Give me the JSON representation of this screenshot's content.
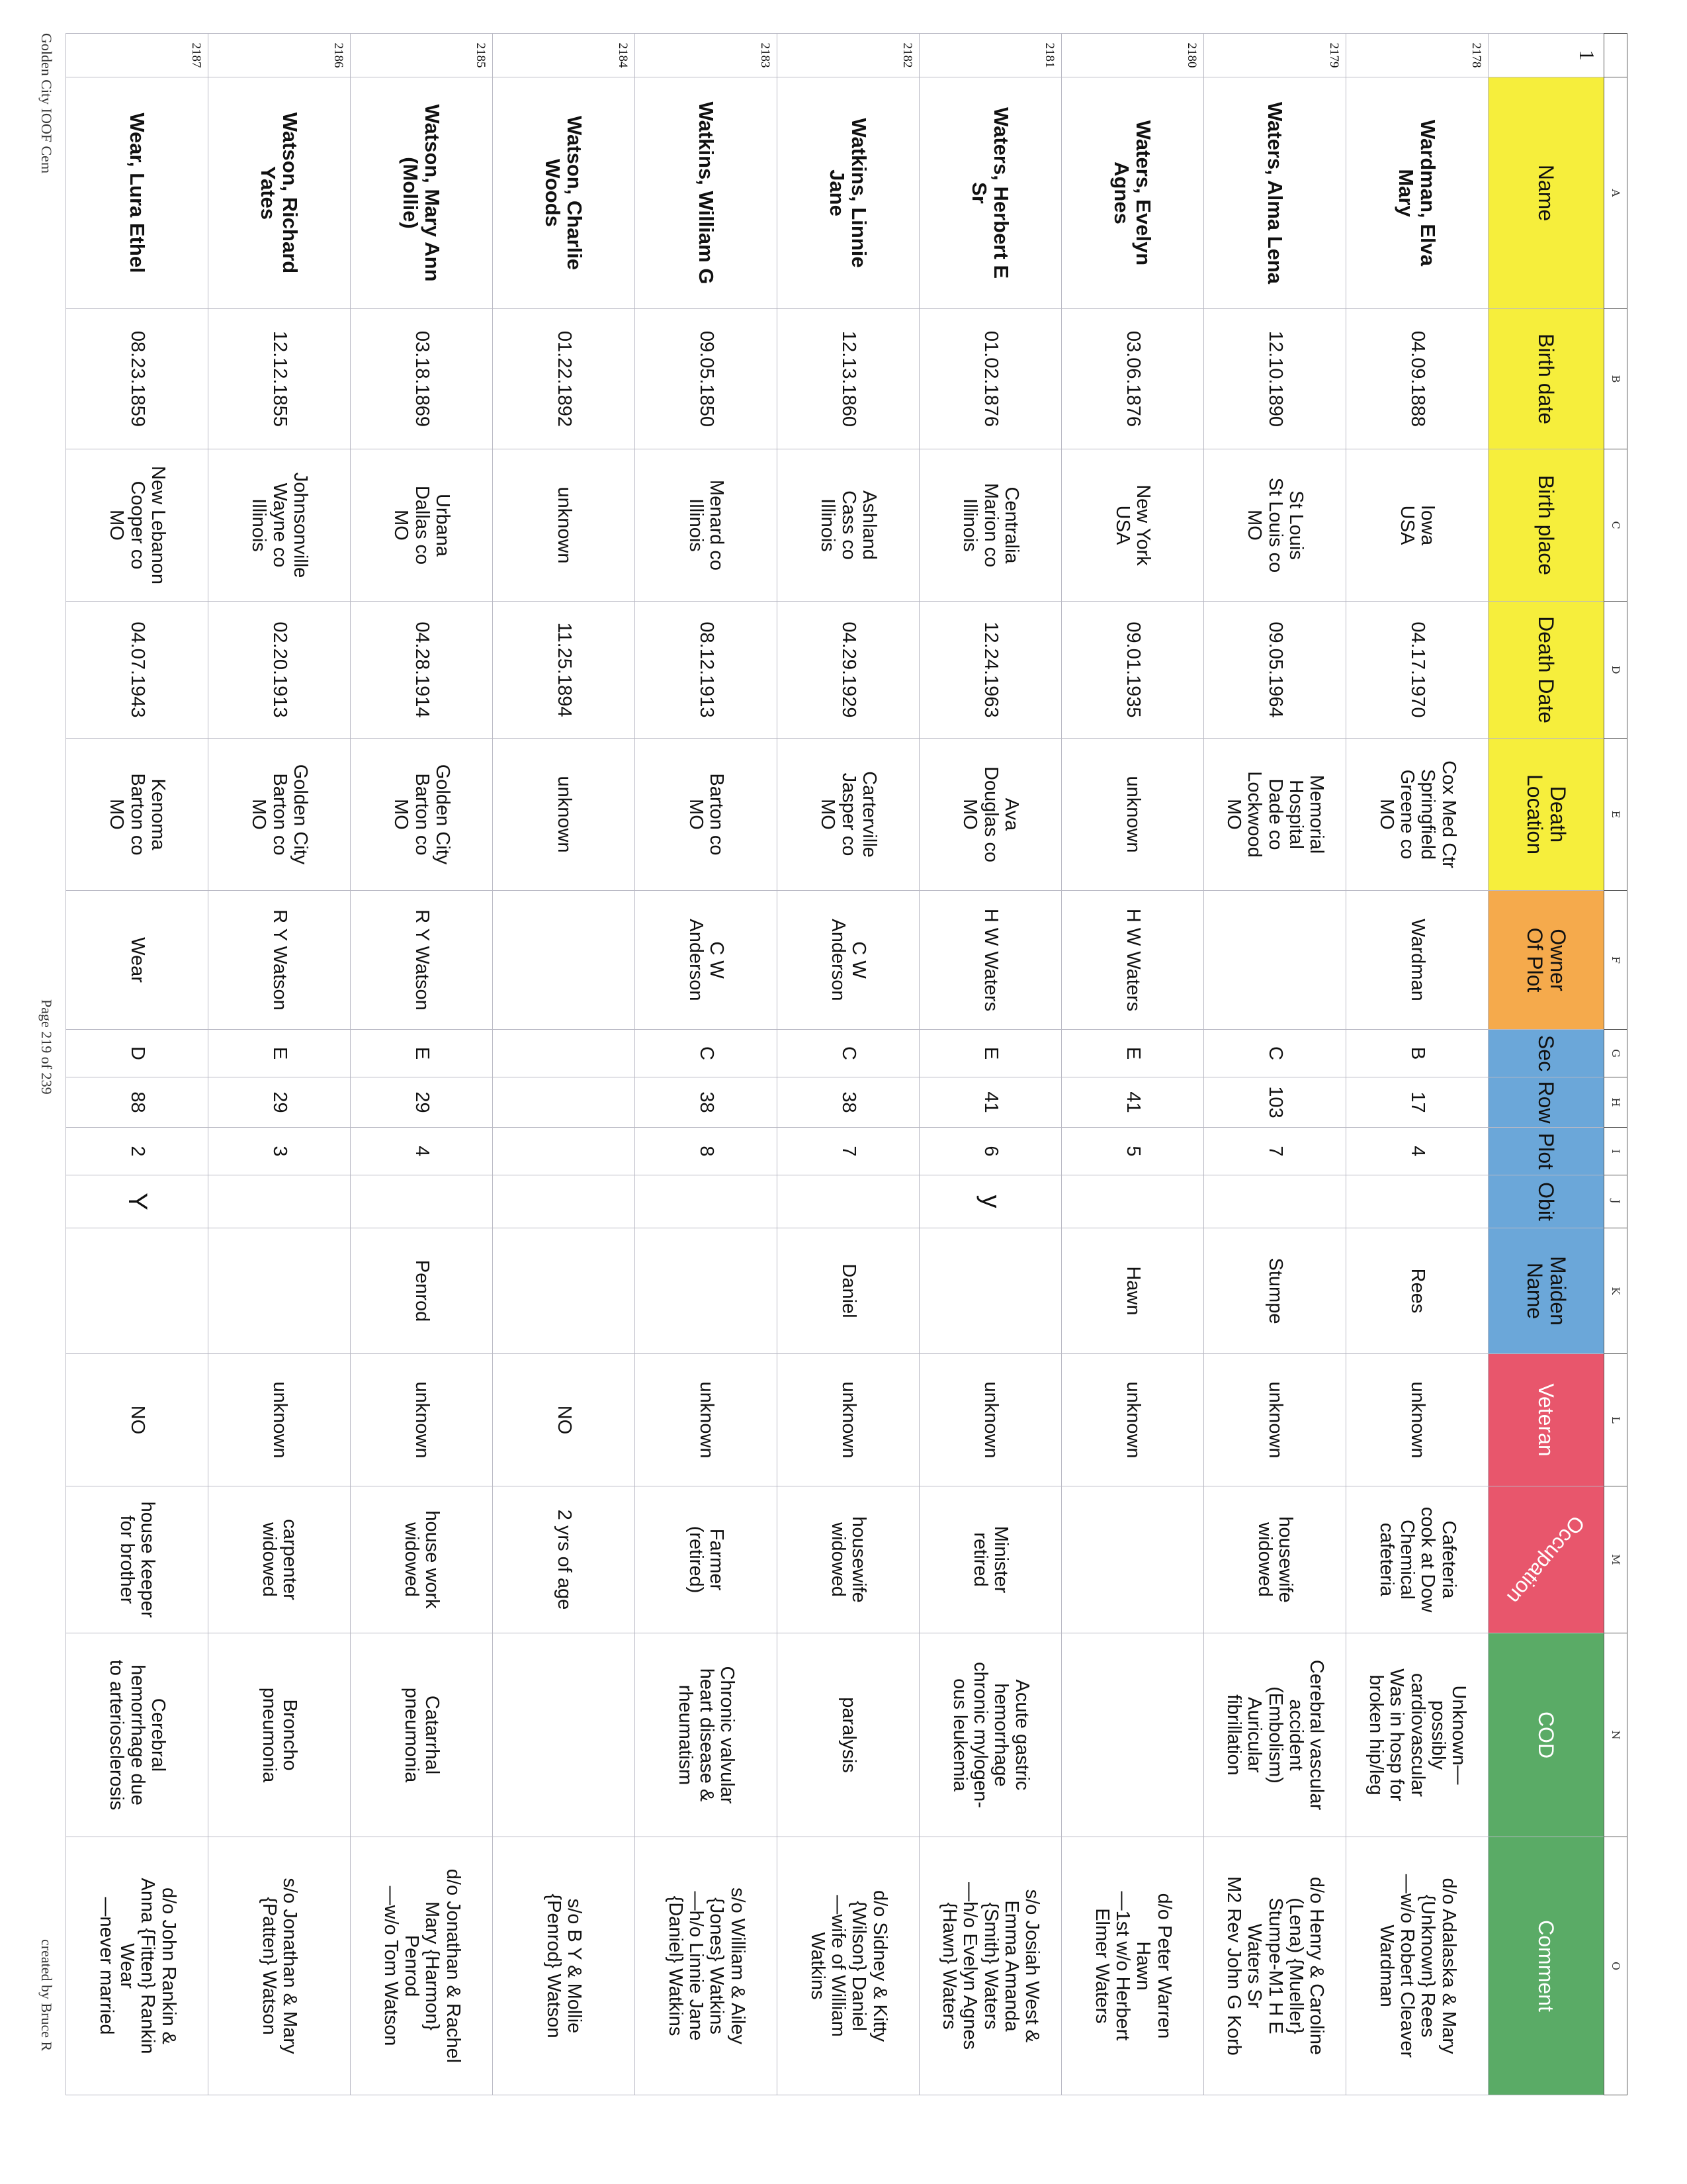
{
  "colors": {
    "yellow": "#f6ee3c",
    "orange": "#f5aa4c",
    "blue": "#6ba7d9",
    "red": "#e8566c",
    "green": "#5aab66"
  },
  "column_letters": [
    "",
    "A",
    "B",
    "C",
    "D",
    "E",
    "F",
    "G",
    "H",
    "I",
    "J",
    "K",
    "L",
    "M",
    "N",
    "O"
  ],
  "header": {
    "row_number": "1",
    "labels": [
      "Name",
      "Birth date",
      "Birth place",
      "Death Date",
      "Death\nLocation",
      "Owner\nOf Plot",
      "Sec",
      "Row",
      "Plot",
      "Obit",
      "Maiden\nName",
      "Veteran",
      "Occupation",
      "COD",
      "Comment"
    ],
    "colors": [
      "yellow",
      "yellow",
      "yellow",
      "yellow",
      "yellow",
      "orange",
      "blue",
      "blue",
      "blue",
      "blue",
      "blue",
      "red",
      "red",
      "green",
      "green"
    ]
  },
  "rows": [
    [
      "2178",
      "Wardman, Elva\nMary",
      "04.09.1888",
      "Iowa\nUSA",
      "04.17.1970",
      "Cox Med Ctr\nSpringfield\nGreene co\nMO",
      "Wardman",
      "B",
      "17",
      "4",
      "",
      "Rees",
      "unknown",
      "Cafeteria\ncook at Dow\nChemical\ncafeteria",
      "Unknown—\npossibly\ncardiovascular\nWas in hosp for\nbroken hip/leg",
      "d/o Adalaska & Mary\n{Unknown} Rees\n—w/o Robert Cleaver\nWardman"
    ],
    [
      "2179",
      "Waters, Alma Lena",
      "12.10.1890",
      "St Louis\nSt Louis co\nMO",
      "09.05.1964",
      "Memorial\nHospital\nDade co\nLockwood\nMO",
      "",
      "C",
      "103",
      "7",
      "",
      "Stumpe",
      "unknown",
      "housewife\nwidowed",
      "Cerebral vascular\naccident\n(Embolism)\nAuricular\nfibrillation",
      "d/o Henry & Caroline\n(Lena) {Mueller}\nStumpe-M1 H E\nWaters Sr\nM2 Rev John G Korb"
    ],
    [
      "2180",
      "Waters, Evelyn\nAgnes",
      "03.06.1876",
      "New York\nUSA",
      "09.01.1935",
      "unknown",
      "H W Waters",
      "E",
      "41",
      "5",
      "",
      "Hawn",
      "unknown",
      "",
      "",
      "d/o Peter Warren\nHawn\n—1st w/o Herbert\nElmer Waters"
    ],
    [
      "2181",
      "Waters, Herbert E\nSr",
      "01.02.1876",
      "Centralia\nMarion co\nIllinois",
      "12.24.1963",
      "Ava\nDouglas co\nMO",
      "H W Waters",
      "E",
      "41",
      "6",
      "y",
      "",
      "unknown",
      "Minister\nretired",
      "Acute gastric\nhemorrhage\nchronic mylogen-\nous leukemia",
      "s/o Josiah West &\nEmma Amanda\n{Smith} Waters\n—h/o Evelyn Agnes\n{Hawn} Waters"
    ],
    [
      "2182",
      "Watkins, Linnie\nJane",
      "12.13.1860",
      "Ashland\nCass co\nIllinois",
      "04.29.1929",
      "Carterville\nJasper co\nMO",
      "C W\nAnderson",
      "C",
      "38",
      "7",
      "",
      "Daniel",
      "unknown",
      "housewife\nwidowed",
      "paralysis",
      "d/o Sidney & Kitty\n{Wilson} Daniel\n—wife of William\nWatkins"
    ],
    [
      "2183",
      "Watkins, William G",
      "09.05.1850",
      "Menard co\nIllinois",
      "08.12.1913",
      "Barton co\nMO",
      "C W\nAnderson",
      "C",
      "38",
      "8",
      "",
      "",
      "unknown",
      "Farmer\n(retired)",
      "Chronic valvular\nheart disease &\nrheumatism",
      "s/o William & Ailey\n{Jones} Watkins\n—h/o Linnie Jane\n{Daniel} Watkins"
    ],
    [
      "2184",
      "Watson, Charlie\nWoods",
      "01.22.1892",
      "unknown",
      "11.25.1894",
      "unknown",
      "",
      "",
      "",
      "",
      "",
      "",
      "NO",
      "2 yrs of age",
      "",
      "s/o B Y & Mollie\n{Penrod} Watson"
    ],
    [
      "2185",
      "Watson, Mary Ann\n(Mollie)",
      "03.18.1869",
      "Urbana\nDallas co\nMO",
      "04.28.1914",
      "Golden City\nBarton co\nMO",
      "R Y Watson",
      "E",
      "29",
      "4",
      "",
      "Penrod",
      "unknown",
      "house work\nwidowed",
      "Catarrhal\npneumonia",
      "d/o Jonathan & Rachel\nMary {Harmon}\nPenrod\n—w/o Tom Watson"
    ],
    [
      "2186",
      "Watson, Richard\nYates",
      "12.12.1855",
      "Johnsonville\nWayne co\nIllinois",
      "02.20.1913",
      "Golden City\nBarton co\nMO",
      "R Y Watson",
      "E",
      "29",
      "3",
      "",
      "",
      "unknown",
      "carpenter\nwidowed",
      "Broncho\npneumonia",
      "s/o Jonathan & Mary\n{Patten} Watson"
    ],
    [
      "2187",
      "Wear, Lura Ethel",
      "08.23.1859",
      "New Lebanon\nCooper co\nMO",
      "04.07.1943",
      "Kenoma\nBarton co\nMO",
      "Wear",
      "D",
      "88",
      "2",
      "Y",
      "",
      "NO",
      "house keeper\nfor brother",
      "Cerebral\nhemorrhage due\nto arteriosclerosis",
      "d/o John Rankin &\nAnna {Fitten} Rankin\nWear\n—never married"
    ]
  ],
  "footer": {
    "left": "Golden City IOOF Cem",
    "center": "Page 219 of 239",
    "right": "created by Bruce R"
  }
}
